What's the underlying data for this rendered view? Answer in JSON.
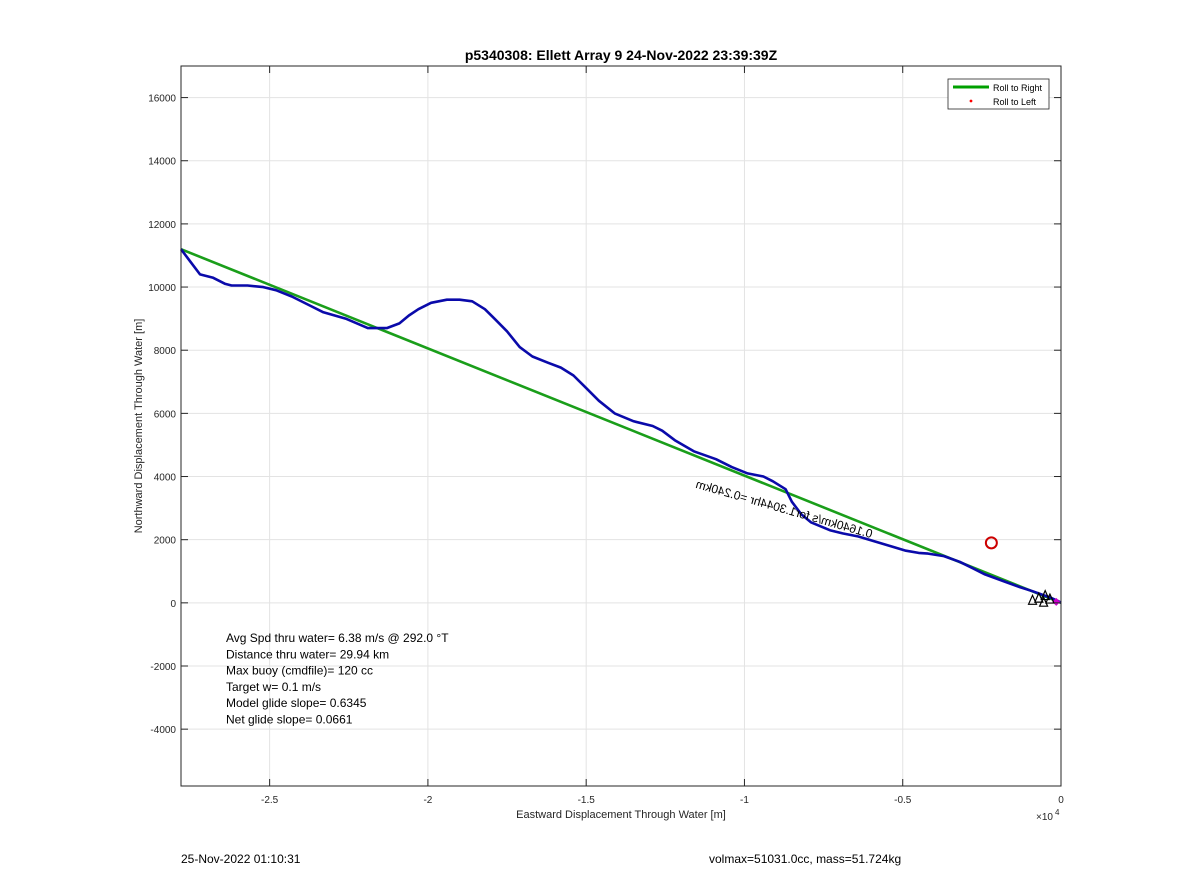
{
  "chart_data": {
    "type": "line",
    "title": "p5340308: Ellett Array 9 24-Nov-2022 23:39:39Z",
    "xlabel": "Eastward Displacement Through Water [m]",
    "ylabel": "Northward Displacement Through Water [m]",
    "x_exponent_label": "×10",
    "x_exponent_power": "4",
    "xlim": [
      -27800,
      0
    ],
    "ylim": [
      -5800,
      17000
    ],
    "x_ticks": [
      -25000,
      -20000,
      -15000,
      -10000,
      -5000,
      0
    ],
    "x_tick_labels": [
      "-2.5",
      "-2",
      "-1.5",
      "-1",
      "-0.5",
      "0"
    ],
    "y_ticks": [
      -4000,
      -2000,
      0,
      2000,
      4000,
      6000,
      8000,
      10000,
      12000,
      14000,
      16000
    ],
    "y_tick_labels": [
      "-4000",
      "-2000",
      "0",
      "2000",
      "4000",
      "6000",
      "8000",
      "10000",
      "12000",
      "14000",
      "16000"
    ],
    "grid": true,
    "legend_position": "top-right",
    "legend": [
      {
        "label": "Roll to Right",
        "color": "#00a000",
        "marker": "line"
      },
      {
        "label": "Roll to Left",
        "color": "#ff0000",
        "marker": "dot"
      }
    ],
    "series": [
      {
        "name": "Roll to Right",
        "color": "#1a9e1a",
        "x": [
          -27800,
          0
        ],
        "y": [
          11200,
          0
        ]
      },
      {
        "color": "#0a0aaa",
        "x": [
          -27800,
          -27500,
          -27200,
          -26800,
          -26400,
          -26200,
          -25700,
          -25200,
          -24800,
          -24300,
          -23700,
          -23300,
          -22600,
          -21900,
          -21300,
          -20900,
          -20600,
          -20300,
          -19900,
          -19400,
          -19000,
          -18600,
          -18200,
          -17900,
          -17500,
          -17100,
          -16700,
          -16200,
          -15800,
          -15400,
          -15000,
          -14600,
          -14100,
          -13500,
          -12900,
          -12600,
          -12200,
          -11600,
          -10900,
          -10400,
          -9900,
          -9400,
          -9100,
          -8700,
          -8500,
          -8200,
          -7900,
          -7300,
          -6900,
          -6400,
          -5900,
          -5400,
          -4900,
          -4500,
          -4200,
          -3700,
          -3200,
          -2800,
          -2400,
          -1800,
          -1300,
          -900,
          -600,
          -300,
          -100,
          0
        ],
        "y": [
          11200,
          10800,
          10400,
          10300,
          10100,
          10050,
          10050,
          10000,
          9900,
          9700,
          9400,
          9200,
          9000,
          8700,
          8700,
          8850,
          9100,
          9300,
          9500,
          9600,
          9600,
          9550,
          9300,
          9000,
          8600,
          8100,
          7800,
          7600,
          7450,
          7200,
          6800,
          6400,
          6000,
          5750,
          5600,
          5450,
          5150,
          4800,
          4550,
          4300,
          4100,
          4000,
          3850,
          3600,
          3200,
          2800,
          2550,
          2300,
          2200,
          2100,
          1950,
          1800,
          1650,
          1580,
          1560,
          1480,
          1300,
          1100,
          900,
          680,
          500,
          370,
          260,
          150,
          60,
          0
        ]
      }
    ],
    "markers": [
      {
        "type": "circle",
        "color": "#cc0000",
        "x": -2200,
        "y": 1900
      },
      {
        "type": "diamond",
        "color": "#cc00cc",
        "x": -150,
        "y": 30
      }
    ],
    "annotations": {
      "rotated_label": "0.1640km/s for1.3044hr =0.240km",
      "stats": [
        "Avg Spd thru water=  6.38 m/s @ 292.0 °T",
        "Distance thru water= 29.94 km",
        "Max buoy (cmdfile)= 120 cc",
        "Target w= 0.1 m/s",
        "Model glide slope= 0.6345",
        "Net glide slope= 0.0661"
      ]
    }
  },
  "footer": {
    "timestamp": "25-Nov-2022 01:10:31",
    "vehicle_info": "volmax=51031.0cc, mass=51.724kg"
  }
}
